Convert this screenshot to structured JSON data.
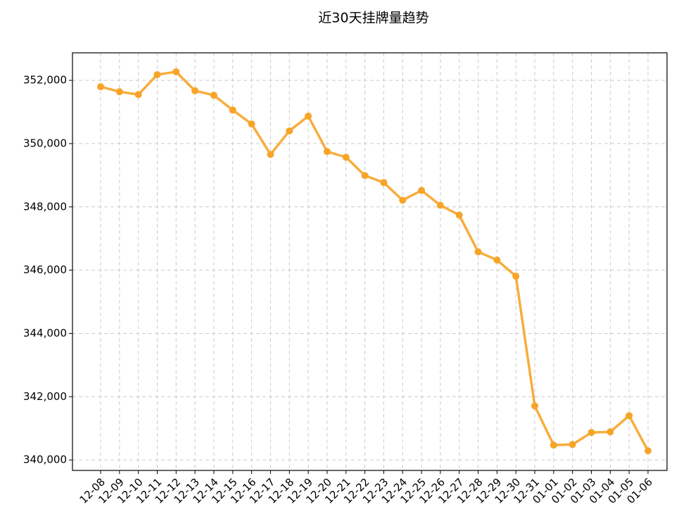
{
  "chart_data": {
    "type": "line",
    "title": "近30天挂牌量趋势",
    "categories": [
      "12-08",
      "12-09",
      "12-10",
      "12-11",
      "12-12",
      "12-13",
      "12-14",
      "12-15",
      "12-16",
      "12-17",
      "12-18",
      "12-19",
      "12-20",
      "12-21",
      "12-22",
      "12-23",
      "12-24",
      "12-25",
      "12-26",
      "12-27",
      "12-28",
      "12-29",
      "12-30",
      "12-31",
      "01-01",
      "01-02",
      "01-03",
      "01-04",
      "01-05",
      "01-06"
    ],
    "series": [
      {
        "color": "#f7a428",
        "values": [
          351800,
          351640,
          351550,
          352180,
          352270,
          351670,
          351530,
          351060,
          350620,
          349660,
          350400,
          350870,
          349750,
          349570,
          348990,
          348770,
          348210,
          348520,
          348050,
          347740,
          346580,
          346320,
          345810,
          341710,
          340470,
          340490,
          340870,
          340890,
          341400,
          340290
        ]
      }
    ],
    "ylim": [
      339670,
      352870
    ],
    "yticks": [
      {
        "value": 340000,
        "label": "340,000"
      },
      {
        "value": 342000,
        "label": "342,000"
      },
      {
        "value": 344000,
        "label": "344,000"
      },
      {
        "value": 346000,
        "label": "346,000"
      },
      {
        "value": 348000,
        "label": "348,000"
      },
      {
        "value": 350000,
        "label": "350,000"
      },
      {
        "value": 352000,
        "label": "352,000"
      }
    ],
    "grid": true
  }
}
